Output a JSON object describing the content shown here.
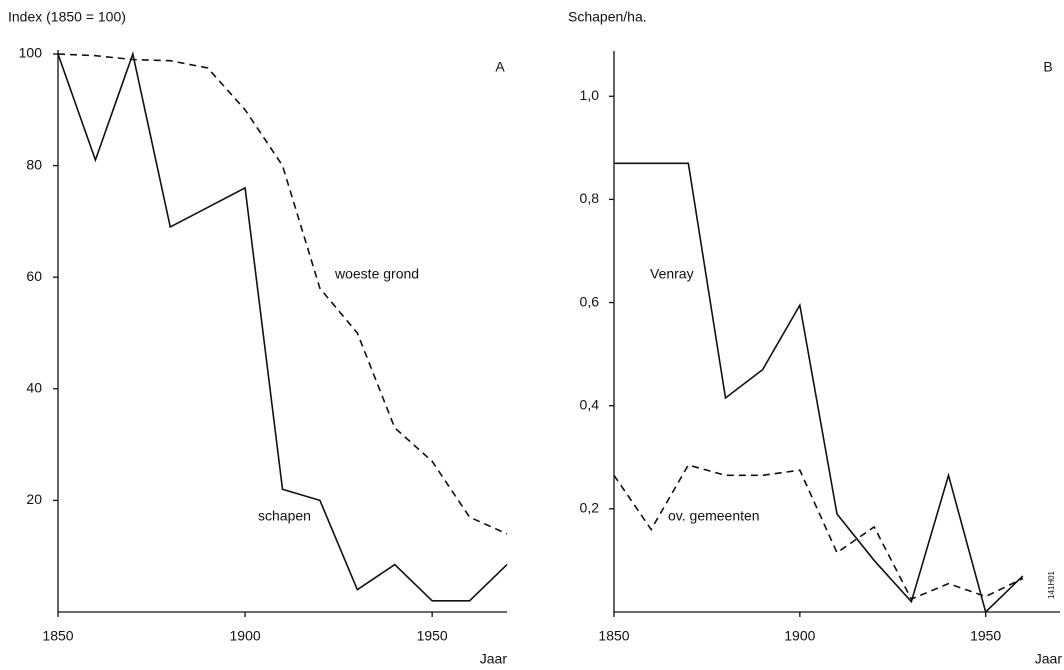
{
  "chart_data": [
    {
      "type": "line",
      "panel": "A",
      "ylabel": "Index (1850 = 100)",
      "xlabel": "Jaar",
      "x": [
        1850,
        1860,
        1870,
        1880,
        1890,
        1900,
        1910,
        1920,
        1930,
        1940,
        1950,
        1960,
        1970
      ],
      "series": [
        {
          "name": "schapen",
          "color": "#111111",
          "style": "solid",
          "values": [
            100,
            81,
            100,
            69,
            72.5,
            76,
            22,
            20,
            4,
            8.5,
            2,
            2,
            8.5
          ]
        },
        {
          "name": "woeste grond",
          "color": "#111111",
          "style": "dashed",
          "values": [
            100,
            99.7,
            99,
            98.8,
            97.5,
            90,
            80,
            58,
            50,
            33,
            27,
            17,
            14
          ]
        }
      ],
      "xlim": [
        1850,
        1970
      ],
      "xticks": [
        1850,
        1900,
        1950
      ],
      "ylim": [
        0,
        100
      ],
      "yticks": [
        20,
        40,
        60,
        80,
        100
      ],
      "grid": false
    },
    {
      "type": "line",
      "panel": "B",
      "ylabel": "Schapen/ha.",
      "xlabel": "Jaar",
      "code": "141H01",
      "x": [
        1850,
        1860,
        1870,
        1880,
        1890,
        1900,
        1910,
        1920,
        1930,
        1940,
        1950,
        1960
      ],
      "series": [
        {
          "name": "Venray",
          "color": "#111111",
          "style": "solid",
          "values": [
            0.87,
            0.87,
            0.87,
            0.415,
            0.47,
            0.595,
            0.19,
            0.1,
            0.02,
            0.265,
            0,
            0.07
          ]
        },
        {
          "name": "ov. gemeenten",
          "color": "#111111",
          "style": "dashed",
          "values": [
            0.265,
            0.16,
            0.285,
            0.265,
            0.265,
            0.275,
            0.115,
            0.165,
            0.025,
            0.055,
            0.03,
            0.065
          ]
        }
      ],
      "xlim": [
        1850,
        1970
      ],
      "xticks": [
        1850,
        1900,
        1950
      ],
      "ylim": [
        0,
        1.08
      ],
      "yticks": [
        {
          "value": 0.2,
          "label": "0,2"
        },
        {
          "value": 0.4,
          "label": "0,4"
        },
        {
          "value": 0.6,
          "label": "0,6"
        },
        {
          "value": 0.8,
          "label": "0,8"
        },
        {
          "value": 1.0,
          "label": "1,0"
        }
      ],
      "grid": false
    }
  ]
}
